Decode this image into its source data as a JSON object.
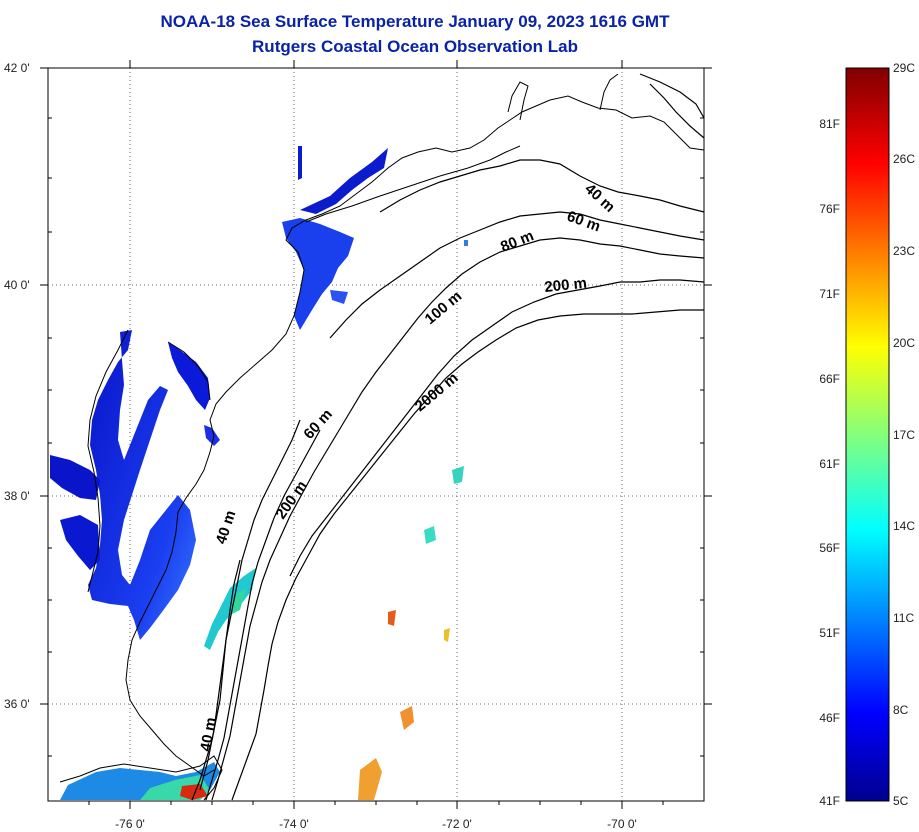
{
  "header": {
    "title": "NOAA-18 Sea Surface Temperature January 09, 2023 1616 GMT",
    "subtitle": "Rutgers Coastal Ocean Observation Lab"
  },
  "map": {
    "lat_range": [
      35,
      42
    ],
    "lon_range": [
      -77,
      -69
    ],
    "lat_labels": [
      "42 0'",
      "40 0'",
      "38 0'",
      "36 0'"
    ],
    "lon_labels": [
      "-76 0'",
      "-74 0'",
      "-72 0'",
      "-70 0'"
    ],
    "grid": "dotted",
    "contour_labels": [
      "40 m",
      "60 m",
      "80 m",
      "200 m",
      "100 m",
      "2000 m",
      "60 m",
      "200 m",
      "40 m",
      "40 m"
    ]
  },
  "colorbar": {
    "celsius_labels": [
      "29C",
      "26C",
      "23C",
      "20C",
      "17C",
      "14C",
      "11C",
      "8C",
      "5C"
    ],
    "fahrenheit_labels": [
      "81F",
      "76F",
      "71F",
      "66F",
      "61F",
      "56F",
      "51F",
      "46F",
      "41F"
    ],
    "min_c": 5,
    "max_c": 29,
    "colormap": "jet"
  }
}
